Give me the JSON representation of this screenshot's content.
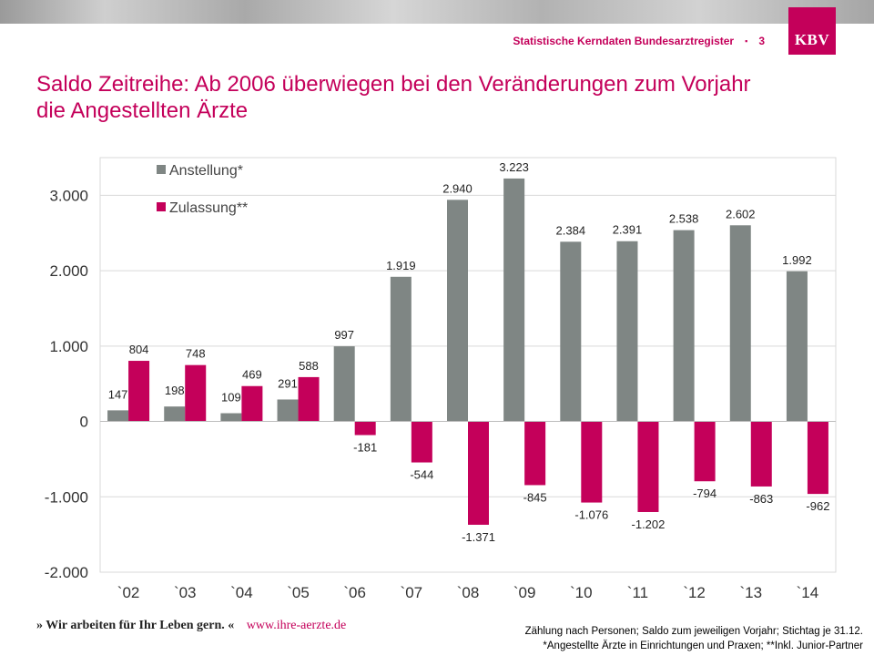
{
  "header": {
    "subtitle": "Statistische Kerndaten Bundesarztregister",
    "separator": "▪",
    "page_number": "3",
    "logo_text": "KBV"
  },
  "title": {
    "line1": "Saldo Zeitreihe: Ab 2006 überwiegen bei den Veränderungen zum Vorjahr",
    "line2": "die Angestellten Ärzte"
  },
  "colors": {
    "accent": "#c4005a",
    "anstellung": "#7f8684",
    "zulassung": "#c4005a",
    "grid": "#d9d9d9",
    "axis_text": "#333333"
  },
  "chart_data": {
    "type": "bar",
    "categories": [
      "`02",
      "`03",
      "`04",
      "`05",
      "`06",
      "`07",
      "`08",
      "`09",
      "`10",
      "`11",
      "`12",
      "`13",
      "`14"
    ],
    "series": [
      {
        "name": "Anstellung*",
        "values": [
          147,
          198,
          109,
          291,
          997,
          1919,
          2940,
          3223,
          2384,
          2391,
          2538,
          2602,
          1992
        ],
        "labels": [
          "147",
          "198",
          "109",
          "291",
          "997",
          "1.919",
          "2.940",
          "3.223",
          "2.384",
          "2.391",
          "2.538",
          "2.602",
          "1.992"
        ]
      },
      {
        "name": "Zulassung**",
        "values": [
          804,
          748,
          469,
          588,
          -181,
          -544,
          -1371,
          -845,
          -1076,
          -1202,
          -794,
          -863,
          -962
        ],
        "labels": [
          "804",
          "748",
          "469",
          "588",
          "-181",
          "-544",
          "-1.371",
          "-845",
          "-1.076",
          "-1.202",
          "-794",
          "-863",
          "-962"
        ]
      }
    ],
    "ylim": [
      -2000,
      3500
    ],
    "yticks": [
      -2000,
      -1000,
      0,
      1000,
      2000,
      3000
    ],
    "ytick_labels": [
      "-2.000",
      "-1.000",
      "0",
      "1.000",
      "2.000",
      "3.000"
    ],
    "legend_position": "top-left",
    "grid": true,
    "xlabel": "",
    "ylabel": ""
  },
  "footer": {
    "slogan": "» Wir arbeiten für Ihr Leben gern. «",
    "url": "www.ihre-aerzte.de",
    "note1": "Zählung nach Personen; Saldo zum jeweiligen Vorjahr; Stichtag je 31.12.",
    "note2": "*Angestellte Ärzte in Einrichtungen und Praxen; **Inkl. Junior-Partner"
  }
}
